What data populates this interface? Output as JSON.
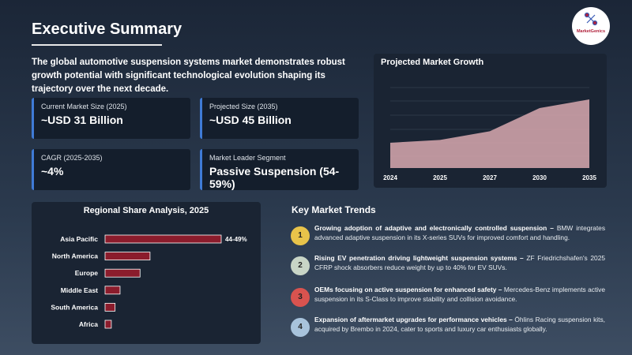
{
  "header": {
    "title": "Executive Summary",
    "logo": "MarketGenics"
  },
  "intro": "The global automotive suspension systems market demonstrates robust growth potential with significant technological evolution shaping its trajectory over the next decade.",
  "kpis": [
    {
      "label": "Current Market Size (2025)",
      "value": "~USD 31 Billion"
    },
    {
      "label": "Projected Size (2035)",
      "value": "~USD 45 Billion"
    },
    {
      "label": "CAGR (2025-2035)",
      "value": "~4%"
    },
    {
      "label": "Market Leader Segment",
      "value": "Passive Suspension (54-59%)"
    }
  ],
  "chart_data": [
    {
      "type": "area",
      "title": "Projected Market Growth",
      "categories": [
        "2024",
        "2025",
        "2027",
        "2030",
        "2035"
      ],
      "values": [
        30,
        31,
        34,
        42,
        45
      ],
      "color": "#d9a9b0"
    },
    {
      "type": "hbar",
      "title": "Regional Share Analysis, 2025",
      "categories": [
        "Asia Pacific",
        "North America",
        "Europe",
        "Middle East",
        "South America",
        "Africa"
      ],
      "values": [
        46.5,
        18,
        14,
        6,
        4,
        2.5
      ],
      "value_labels": [
        "44-49%",
        null,
        null,
        null,
        null,
        null
      ],
      "color": "#8b1c2c"
    }
  ],
  "trends": {
    "title": "Key Market Trends",
    "items": [
      {
        "number": "1",
        "title": "Growing adoption of adaptive and electronically controlled suspension –",
        "text": "BMW integrates advanced adaptive suspension in its X-series SUVs for improved comfort and handling."
      },
      {
        "number": "2",
        "title": "Rising EV penetration driving lightweight suspension systems –",
        "text": "ZF Friedrichshafen's 2025 CFRP shock absorbers reduce weight by up to 40% for EV SUVs."
      },
      {
        "number": "3",
        "title": "OEMs focusing on active suspension for enhanced safety –",
        "text": "Mercedes-Benz implements active suspension in its S-Class to improve stability and collision avoidance."
      },
      {
        "number": "4",
        "title": "Expansion of aftermarket upgrades for performance vehicles –",
        "text": "Öhlins Racing suspension kits, acquired by Brembo in 2024, cater to sports and luxury car enthusiasts globally."
      }
    ]
  }
}
